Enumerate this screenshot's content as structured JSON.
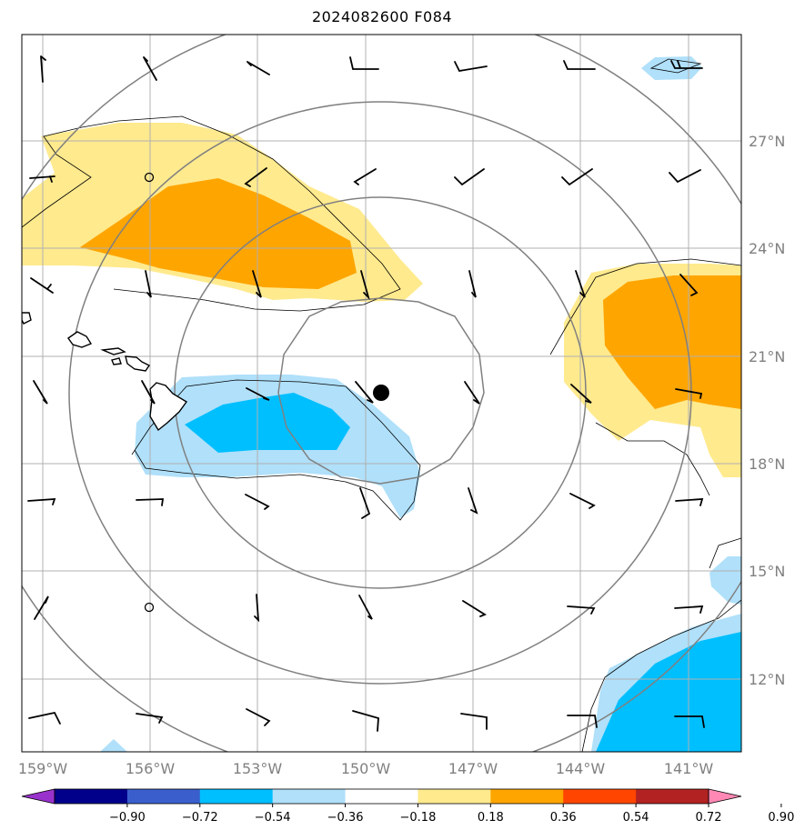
{
  "title": "2024082600 F084",
  "map": {
    "lon_labels": [
      "159°W",
      "156°W",
      "153°W",
      "150°W",
      "147°W",
      "144°W",
      "141°W"
    ],
    "lat_labels": [
      "27°N",
      "24°N",
      "21°N",
      "18°N",
      "15°N",
      "12°N"
    ],
    "center_marker": "storm-center"
  },
  "colorbar": {
    "labels": [
      "−0.90",
      "−0.72",
      "−0.54",
      "−0.36",
      "−0.18",
      "0.18",
      "0.36",
      "0.54",
      "0.72",
      "0.90"
    ],
    "colors": [
      "#9932cc",
      "#00008b",
      "#3a5fcd",
      "#00bfff",
      "#b0e0fa",
      "#ffffff",
      "#ffea8e",
      "#ffa500",
      "#ff4500",
      "#b22222",
      "#ff88b4"
    ]
  }
}
